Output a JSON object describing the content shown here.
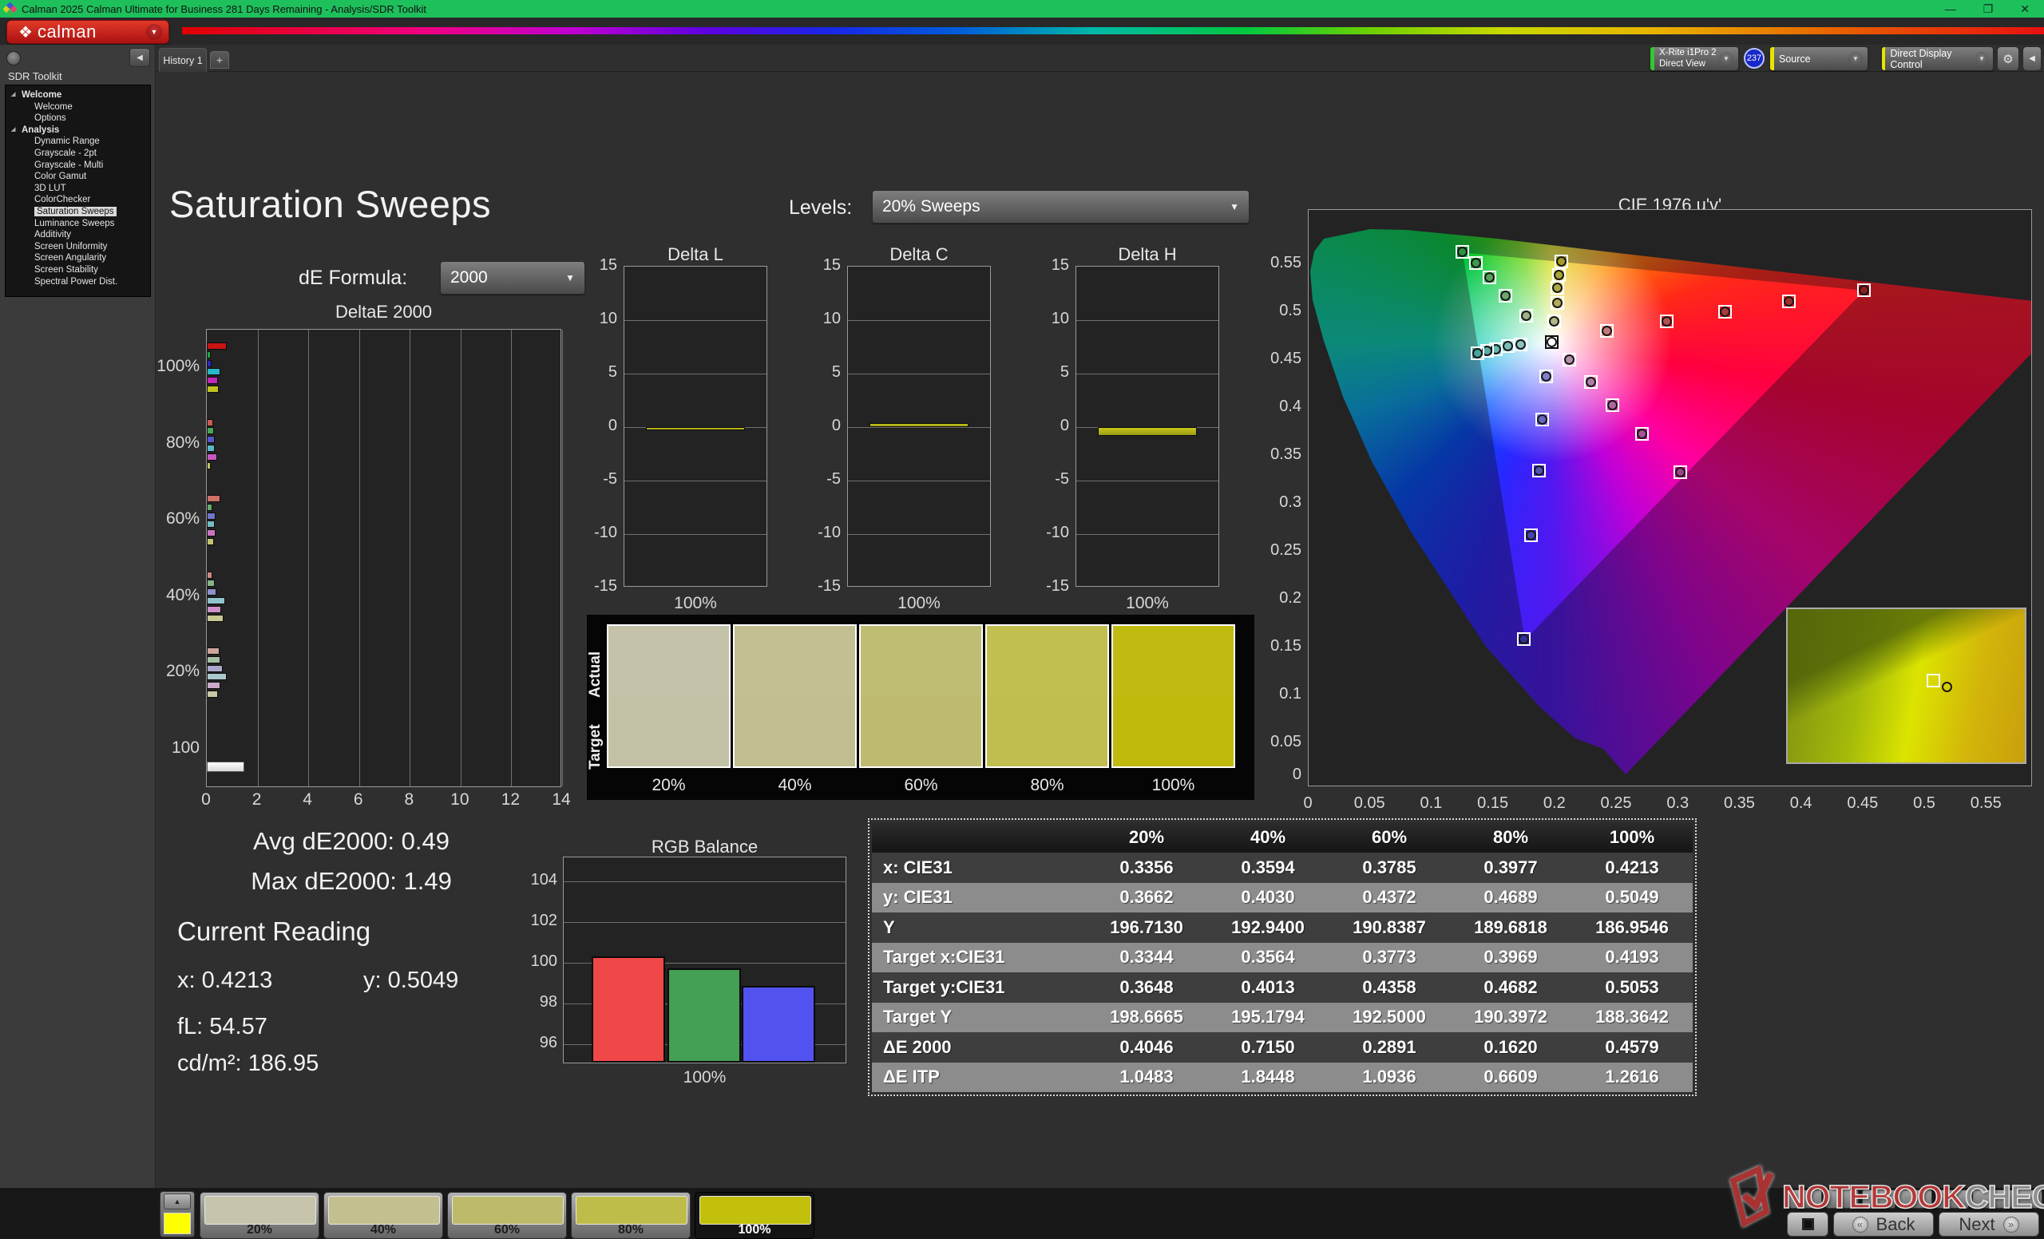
{
  "window": {
    "title": "Calman 2025 Calman Ultimate for Business 281 Days Remaining  - Analysis/SDR Toolkit",
    "minimize": "—",
    "restore": "❐",
    "close": "✕"
  },
  "brand": {
    "logo_glyph": "❖",
    "logo_text": "calman",
    "dropdown_glyph": "▼"
  },
  "tabs": {
    "history": "History 1",
    "add": "+"
  },
  "toolbar": {
    "meter": {
      "line1": "X-Rite i1Pro 2",
      "line2": "Direct View",
      "status_color": "#35c82f",
      "badge": "237"
    },
    "source": {
      "label": "Source",
      "status_color": "#e8e400"
    },
    "display_control": {
      "label": "Direct Display Control",
      "status_color": "#e8e400"
    },
    "gear_icon": "⚙",
    "collapse_icon": "◀",
    "dropdown_glyph": "▼"
  },
  "sidebar": {
    "title": "SDR Toolkit",
    "collapse_icon": "◀",
    "tree": [
      {
        "label": "Welcome",
        "level": 0,
        "expander": true
      },
      {
        "label": "Welcome",
        "level": 1
      },
      {
        "label": "Options",
        "level": 1
      },
      {
        "label": "Analysis",
        "level": 0,
        "expander": true
      },
      {
        "label": "Dynamic Range",
        "level": 1
      },
      {
        "label": "Grayscale - 2pt",
        "level": 1
      },
      {
        "label": "Grayscale - Multi",
        "level": 1
      },
      {
        "label": "Color Gamut",
        "level": 1
      },
      {
        "label": "3D LUT",
        "level": 1
      },
      {
        "label": "ColorChecker",
        "level": 1
      },
      {
        "label": "Saturation Sweeps",
        "level": 1,
        "selected": true
      },
      {
        "label": "Luminance Sweeps",
        "level": 1
      },
      {
        "label": "Additivity",
        "level": 1
      },
      {
        "label": "Screen Uniformity",
        "level": 1
      },
      {
        "label": "Screen Angularity",
        "level": 1
      },
      {
        "label": "Screen Stability",
        "level": 1
      },
      {
        "label": "Spectral Power Dist.",
        "level": 1
      }
    ]
  },
  "page": {
    "title": "Saturation Sweeps",
    "de_formula_label": "dE Formula:",
    "de_formula_value": "2000",
    "levels_label": "Levels:",
    "levels_value": "20% Sweeps"
  },
  "stats": {
    "avg": "Avg dE2000: 0.49",
    "max": "Max dE2000: 1.49",
    "current_label": "Current Reading",
    "x": "x: 0.4213",
    "y": "y: 0.5049",
    "fl": "fL: 54.57",
    "cdm2": "cd/m²: 186.95"
  },
  "table": {
    "columns": [
      "20%",
      "40%",
      "60%",
      "80%",
      "100%"
    ],
    "rows": [
      {
        "label": "x: CIE31",
        "values": [
          "0.3356",
          "0.3594",
          "0.3785",
          "0.3977",
          "0.4213"
        ]
      },
      {
        "label": "y: CIE31",
        "values": [
          "0.3662",
          "0.4030",
          "0.4372",
          "0.4689",
          "0.5049"
        ]
      },
      {
        "label": "Y",
        "values": [
          "196.7130",
          "192.9400",
          "190.8387",
          "189.6818",
          "186.9546"
        ]
      },
      {
        "label": "Target x:CIE31",
        "values": [
          "0.3344",
          "0.3564",
          "0.3773",
          "0.3969",
          "0.4193"
        ]
      },
      {
        "label": "Target y:CIE31",
        "values": [
          "0.3648",
          "0.4013",
          "0.4358",
          "0.4682",
          "0.5053"
        ]
      },
      {
        "label": "Target Y",
        "values": [
          "198.6665",
          "195.1794",
          "192.5000",
          "190.3972",
          "188.3642"
        ]
      },
      {
        "label": "ΔE 2000",
        "values": [
          "0.4046",
          "0.7150",
          "0.2891",
          "0.1620",
          "0.4579"
        ]
      },
      {
        "label": "ΔE ITP",
        "values": [
          "1.0483",
          "1.8448",
          "1.0936",
          "0.6609",
          "1.2616"
        ]
      }
    ]
  },
  "chart_data": {
    "deltae2000": {
      "type": "bar",
      "title": "DeltaE 2000",
      "xlim": [
        0,
        14
      ],
      "xticks": [
        0,
        2,
        4,
        6,
        8,
        10,
        12,
        14
      ],
      "groups": [
        {
          "label": "100%",
          "bars": [
            {
              "v": 0.8,
              "c": "#c81414"
            },
            {
              "v": 0.15,
              "c": "#18a838"
            },
            {
              "v": 0.2,
              "c": "#2828c8"
            },
            {
              "v": 0.55,
              "c": "#28b8c8"
            },
            {
              "v": 0.45,
              "c": "#c028b8"
            },
            {
              "v": 0.46,
              "c": "#c0c020"
            }
          ]
        },
        {
          "label": "80%",
          "bars": [
            {
              "v": 0.25,
              "c": "#cc5c54"
            },
            {
              "v": 0.28,
              "c": "#48a858"
            },
            {
              "v": 0.3,
              "c": "#5858cc"
            },
            {
              "v": 0.33,
              "c": "#58b8c4"
            },
            {
              "v": 0.42,
              "c": "#c858c0"
            },
            {
              "v": 0.16,
              "c": "#c4c45c"
            }
          ]
        },
        {
          "label": "60%",
          "bars": [
            {
              "v": 0.52,
              "c": "#cc7068"
            },
            {
              "v": 0.22,
              "c": "#64ac6c"
            },
            {
              "v": 0.35,
              "c": "#7474cc"
            },
            {
              "v": 0.33,
              "c": "#74bcc4"
            },
            {
              "v": 0.35,
              "c": "#cc74c4"
            },
            {
              "v": 0.29,
              "c": "#c4c474"
            }
          ]
        },
        {
          "label": "40%",
          "bars": [
            {
              "v": 0.22,
              "c": "#cc8880"
            },
            {
              "v": 0.33,
              "c": "#84b488"
            },
            {
              "v": 0.38,
              "c": "#9090cc"
            },
            {
              "v": 0.72,
              "c": "#90c4cc"
            },
            {
              "v": 0.58,
              "c": "#cc90c8"
            },
            {
              "v": 0.66,
              "c": "#c8c890"
            }
          ]
        },
        {
          "label": "20%",
          "bars": [
            {
              "v": 0.5,
              "c": "#cca49c"
            },
            {
              "v": 0.55,
              "c": "#a4c0a4"
            },
            {
              "v": 0.62,
              "c": "#a8a8cc"
            },
            {
              "v": 0.78,
              "c": "#a8c8cc"
            },
            {
              "v": 0.52,
              "c": "#cca8c8"
            },
            {
              "v": 0.45,
              "c": "#c8c8a4"
            }
          ]
        },
        {
          "label": "100",
          "bars": [
            {
              "v": 1.49,
              "c": "#f2f2f2"
            }
          ]
        }
      ]
    },
    "delta_sweeps": [
      {
        "type": "bar",
        "title": "Delta L",
        "xlabel": "100%",
        "ylim": [
          -15,
          15
        ],
        "yticks": [
          15,
          10,
          5,
          0,
          -5,
          -10,
          -15
        ],
        "value": -0.15,
        "color": "#c8c81e"
      },
      {
        "type": "bar",
        "title": "Delta C",
        "xlabel": "100%",
        "ylim": [
          -15,
          15
        ],
        "yticks": [
          15,
          10,
          5,
          0,
          -5,
          -10,
          -15
        ],
        "value": 0.35,
        "color": "#c8c81e"
      },
      {
        "type": "bar",
        "title": "Delta H",
        "xlabel": "100%",
        "ylim": [
          -15,
          15
        ],
        "yticks": [
          15,
          10,
          5,
          0,
          -5,
          -10,
          -15
        ],
        "value": -0.8,
        "color": "#c8c81e"
      }
    ],
    "rgb_balance": {
      "type": "bar",
      "title": "RGB Balance",
      "xlabel": "100%",
      "ylim": [
        95.0,
        105.2
      ],
      "yticks": [
        104,
        102,
        100,
        98,
        96
      ],
      "series": [
        {
          "name": "Red",
          "value": 100.25,
          "color": "#f04848"
        },
        {
          "name": "Green",
          "value": 99.65,
          "color": "#44a054"
        },
        {
          "name": "Blue",
          "value": 98.8,
          "color": "#5252f0"
        }
      ]
    },
    "cie": {
      "type": "scatter",
      "title": "CIE 1976 u'v'",
      "xlim": [
        0,
        0.5874
      ],
      "ylim": [
        0.004,
        0.607
      ],
      "xticks": [
        0,
        0.05,
        0.1,
        0.15,
        0.2,
        0.25,
        0.3,
        0.35,
        0.4,
        0.45,
        0.5,
        0.55
      ],
      "yticks": [
        0,
        0.05,
        0.1,
        0.15,
        0.2,
        0.25,
        0.3,
        0.35,
        0.4,
        0.45,
        0.5,
        0.55
      ],
      "triangle": [
        [
          0.4507,
          0.5229
        ],
        [
          0.125,
          0.5625
        ],
        [
          0.1754,
          0.1579
        ]
      ],
      "white_point": {
        "u": 0.1978,
        "v": 0.4683,
        "c": "#ffffff"
      },
      "sweeps": [
        {
          "name": "red",
          "points": [
            [
              0.242,
              0.48
            ],
            [
              0.291,
              0.49
            ],
            [
              0.338,
              0.5
            ],
            [
              0.39,
              0.511
            ],
            [
              0.451,
              0.523
            ]
          ],
          "colors": [
            "#c47878",
            "#b65050",
            "#a63c3c",
            "#9e2e2e",
            "#8e2020"
          ]
        },
        {
          "name": "green",
          "points": [
            [
              0.177,
              0.496
            ],
            [
              0.16,
              0.517
            ],
            [
              0.147,
              0.536
            ],
            [
              0.136,
              0.551
            ],
            [
              0.125,
              0.563
            ]
          ],
          "colors": [
            "#9cb284",
            "#6aa868",
            "#54a258",
            "#3c9a48",
            "#2a9240"
          ]
        },
        {
          "name": "blue",
          "points": [
            [
              0.193,
              0.433
            ],
            [
              0.19,
              0.388
            ],
            [
              0.187,
              0.334
            ],
            [
              0.181,
              0.267
            ],
            [
              0.175,
              0.158
            ]
          ],
          "colors": [
            "#8080c8",
            "#6868c0",
            "#5454b4",
            "#4444aa",
            "#30309c"
          ]
        },
        {
          "name": "cyan",
          "points": [
            [
              0.172,
              0.466
            ],
            [
              0.162,
              0.464
            ],
            [
              0.152,
              0.461
            ],
            [
              0.145,
              0.459
            ],
            [
              0.137,
              0.457
            ]
          ],
          "colors": [
            "#8cc4c0",
            "#7cbcb8",
            "#68b4b0",
            "#58aca8",
            "#48a4a0"
          ]
        },
        {
          "name": "magenta",
          "points": [
            [
              0.212,
              0.45
            ],
            [
              0.229,
              0.427
            ],
            [
              0.247,
              0.403
            ],
            [
              0.271,
              0.373
            ],
            [
              0.302,
              0.333
            ]
          ],
          "colors": [
            "#b490aa",
            "#b07ca4",
            "#aa689c",
            "#a45494",
            "#9c4289"
          ]
        },
        {
          "name": "yellow",
          "points": [
            [
              0.1997,
              0.4902
            ],
            [
              0.202,
              0.5096
            ],
            [
              0.2021,
              0.5254
            ],
            [
              0.2031,
              0.5389
            ],
            [
              0.2051,
              0.5531
            ]
          ],
          "colors": [
            "#b4b48a",
            "#b0ac5c",
            "#aca848",
            "#a8a438",
            "#a49e28"
          ]
        }
      ]
    },
    "swatch_strip": {
      "row_labels": [
        "Actual",
        "Target"
      ],
      "levels": [
        "20%",
        "40%",
        "60%",
        "80%",
        "100%"
      ],
      "actual_colors": [
        "#c4c3a9",
        "#c2bf92",
        "#bfbc73",
        "#c1bf50",
        "#c0bb10"
      ],
      "target_colors": [
        "#c2c1a6",
        "#c1be90",
        "#bebb70",
        "#c0be4e",
        "#bfba0c"
      ]
    }
  },
  "patterns": {
    "up_icon": "▲",
    "lone_swatch_color": "#ffff00",
    "items": [
      {
        "label": "20%",
        "color": "#c6c5ab"
      },
      {
        "label": "40%",
        "color": "#c3c08f"
      },
      {
        "label": "60%",
        "color": "#bdba6c"
      },
      {
        "label": "80%",
        "color": "#bfbd4a"
      },
      {
        "label": "100%",
        "color": "#c2c00a",
        "selected": true
      }
    ]
  },
  "footer": {
    "back_label": "Back",
    "next_label": "Next",
    "back_icon": "«",
    "next_icon": "»",
    "watermark_red": "NOTEBOOK",
    "watermark_gray": "CHECK"
  }
}
